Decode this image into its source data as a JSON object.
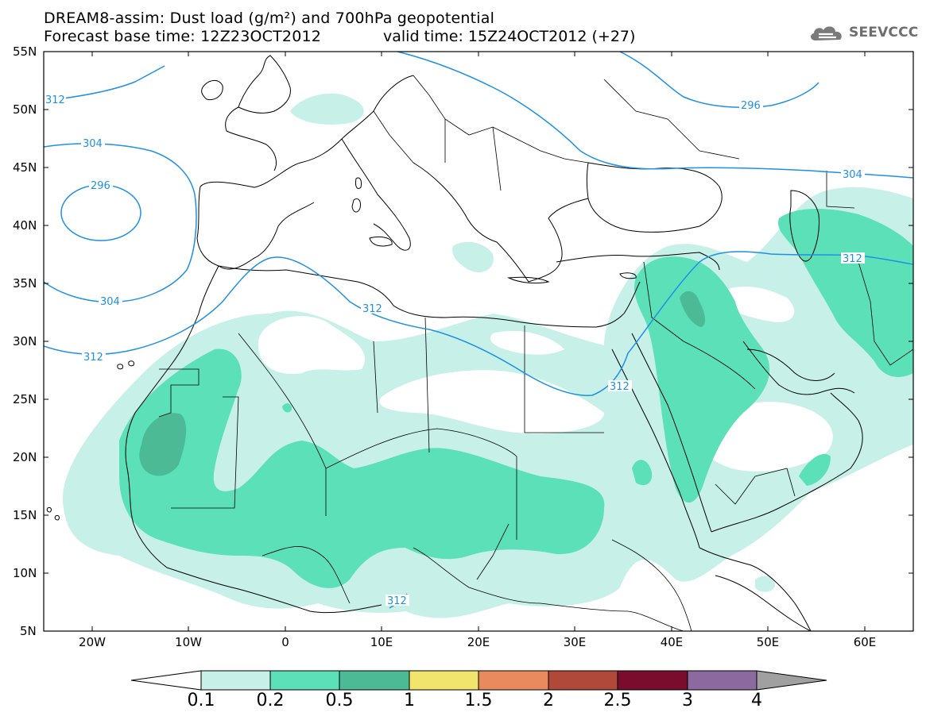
{
  "header": {
    "title_line1": "DREAM8-assim: Dust load (g/m²) and 700hPa geopotential",
    "title_line2_left": "Forecast base time: 12Z23OCT2012",
    "title_line2_right": "valid time: 15Z24OCT2012 (+27)"
  },
  "logo": {
    "text": "SEEVCCC",
    "icon": "cloud-icon"
  },
  "map": {
    "lat_labels": [
      "55N",
      "50N",
      "45N",
      "40N",
      "35N",
      "30N",
      "25N",
      "20N",
      "15N",
      "10N",
      "5N"
    ],
    "lon_labels": [
      "20W",
      "10W",
      "0",
      "10E",
      "20E",
      "30E",
      "40E",
      "50E",
      "60E"
    ],
    "contour_labels": [
      "312",
      "304",
      "296",
      "304",
      "312",
      "312",
      "312",
      "296",
      "304",
      "312",
      "312"
    ],
    "colors": {
      "dust_0_1": "#c6f0e8",
      "dust_0_2": "#5ce0b8",
      "dust_0_5": "#4cbb95",
      "contour": "#1e90e6",
      "coast": "#000000"
    }
  },
  "colorbar": {
    "labels": [
      "0.1",
      "0.2",
      "0.5",
      "1",
      "1.5",
      "2",
      "2.5",
      "3",
      "4"
    ],
    "colors": [
      "#c6f0e8",
      "#5ce0b8",
      "#4cbb95",
      "#f2e56e",
      "#e88a5e",
      "#b0493a",
      "#7a0c2e",
      "#8c6aa0",
      "#a0a0a0"
    ]
  }
}
